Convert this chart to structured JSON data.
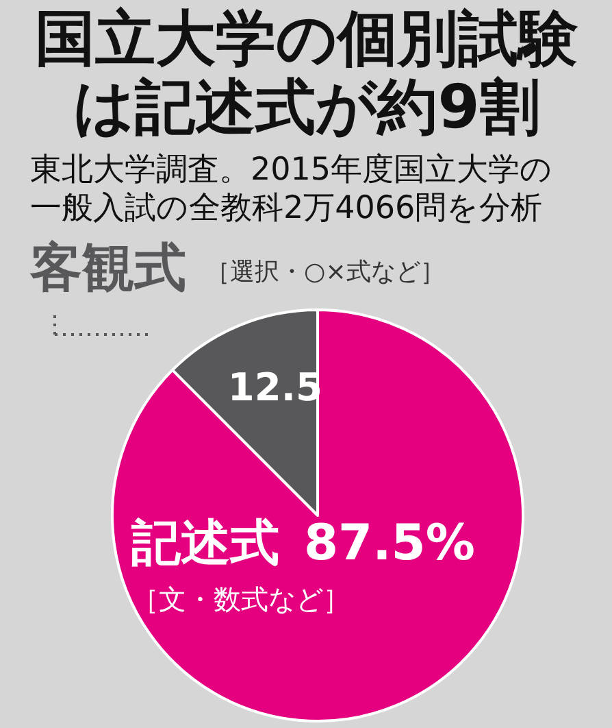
{
  "chart_data": {
    "type": "pie",
    "title": "国立大学の個別試験は記述式が約9割",
    "subtitle": "東北大学調査。2015年度国立大学の一般入試の全教科2万4066問を分析",
    "categories": [
      "客観式",
      "記述式"
    ],
    "values": [
      12.5,
      87.5
    ],
    "colors": [
      "#58585a",
      "#e4007f"
    ],
    "value_labels": [
      "12.5",
      "87.5%"
    ],
    "annotations": [
      "［選択・○×式など］",
      "［文・数式など］"
    ]
  }
}
